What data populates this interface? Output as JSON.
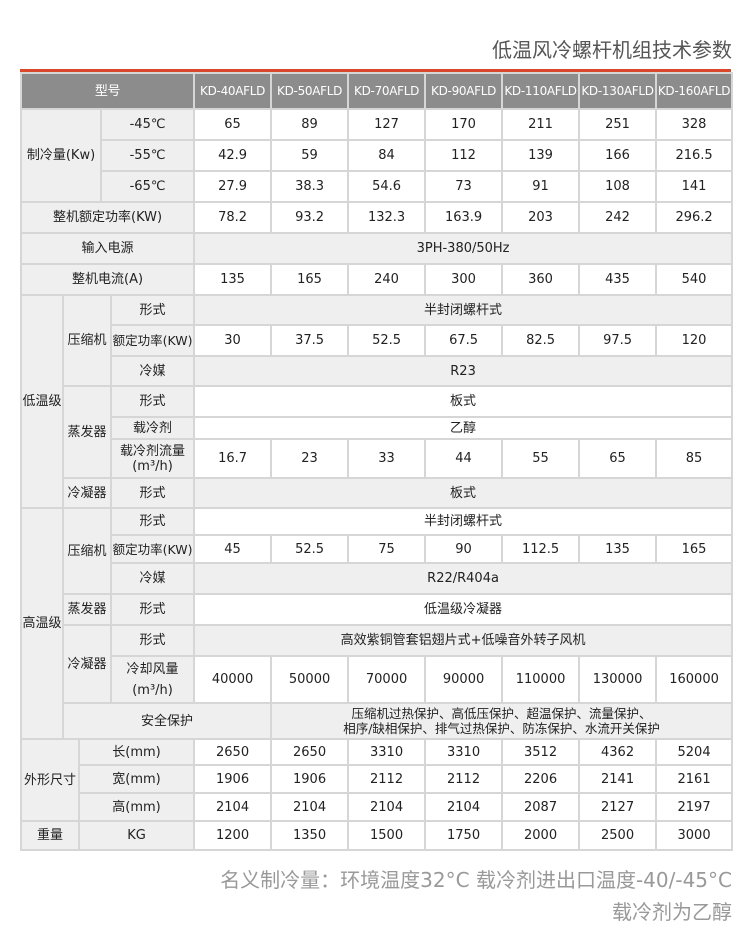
{
  "title": "低温风冷螺杆机组技术参数",
  "colors": {
    "accent": "#d9482b",
    "header_bg": "#8c8c8c",
    "label_bg": "#efefef"
  },
  "header": {
    "label": "型号",
    "models": [
      "KD-40AFLD",
      "KD-50AFLD",
      "KD-70AFLD",
      "KD-90AFLD",
      "KD-110AFLD",
      "KD-130AFLD",
      "KD-160AFLD"
    ]
  },
  "cooling": {
    "label": "制冷量(Kw)",
    "rows": [
      {
        "temp": "-45℃",
        "values": [
          "65",
          "89",
          "127",
          "170",
          "211",
          "251",
          "328"
        ]
      },
      {
        "temp": "-55℃",
        "values": [
          "42.9",
          "59",
          "84",
          "112",
          "139",
          "166",
          "216.5"
        ]
      },
      {
        "temp": "-65℃",
        "values": [
          "27.9",
          "38.3",
          "54.6",
          "73",
          "91",
          "108",
          "141"
        ]
      }
    ]
  },
  "power": {
    "label": "整机额定功率(KW)",
    "values": [
      "78.2",
      "93.2",
      "132.3",
      "163.9",
      "203",
      "242",
      "296.2"
    ]
  },
  "supply": {
    "label": "输入电源",
    "value": "3PH-380/50Hz"
  },
  "current": {
    "label": "整机电流(A)",
    "values": [
      "135",
      "165",
      "240",
      "300",
      "360",
      "435",
      "540"
    ]
  },
  "low": {
    "label": "低温级",
    "compressor": {
      "label": "压缩机",
      "type_label": "形式",
      "type": "半封闭螺杆式",
      "power_label": "额定功率(KW)",
      "power": [
        "30",
        "37.5",
        "52.5",
        "67.5",
        "82.5",
        "97.5",
        "120"
      ],
      "refrigerant_label": "冷媒",
      "refrigerant": "R23"
    },
    "evaporator": {
      "label": "蒸发器",
      "type_label": "形式",
      "type": "板式",
      "coolant_label": "载冷剂",
      "coolant": "乙醇",
      "flow_label": "载冷剂流量",
      "flow_unit": "(m³/h)",
      "flow": [
        "16.7",
        "23",
        "33",
        "44",
        "55",
        "65",
        "85"
      ]
    },
    "condenser": {
      "label": "冷凝器",
      "type_label": "形式",
      "type": "板式"
    }
  },
  "high": {
    "label": "高温级",
    "compressor": {
      "label": "压缩机",
      "type_label": "形式",
      "type": "半封闭螺杆式",
      "power_label": "额定功率(KW)",
      "power": [
        "45",
        "52.5",
        "75",
        "90",
        "112.5",
        "135",
        "165"
      ],
      "refrigerant_label": "冷媒",
      "refrigerant": "R22/R404a"
    },
    "evaporator": {
      "label": "蒸发器",
      "type_label": "形式",
      "type": "低温级冷凝器"
    },
    "condenser": {
      "label": "冷凝器",
      "type_label": "形式",
      "type": "高效紫铜管套铝翅片式+低噪音外转子风机",
      "air_label": "冷却风量",
      "air_unit": "(m³/h)",
      "air": [
        "40000",
        "50000",
        "70000",
        "90000",
        "110000",
        "130000",
        "160000"
      ]
    }
  },
  "safety": {
    "label": "安全保护",
    "line1": "压缩机过热保护、高低压保护、超温保护、流量保护、",
    "line2": "相序/缺相保护、排气过热保护、防冻保护、水流开关保护"
  },
  "dims": {
    "label": "外形尺寸",
    "rows": [
      {
        "label": "长(mm)",
        "values": [
          "2650",
          "2650",
          "3310",
          "3310",
          "3512",
          "4362",
          "5204"
        ]
      },
      {
        "label": "宽(mm)",
        "values": [
          "1906",
          "1906",
          "2112",
          "2112",
          "2206",
          "2141",
          "2161"
        ]
      },
      {
        "label": "高(mm)",
        "values": [
          "2104",
          "2104",
          "2104",
          "2104",
          "2087",
          "2127",
          "2197"
        ]
      }
    ]
  },
  "weight": {
    "label": "重量",
    "unit": "KG",
    "values": [
      "1200",
      "1350",
      "1500",
      "1750",
      "2000",
      "2500",
      "3000"
    ]
  },
  "footnote": {
    "line1": "名义制冷量：环境温度32°C  载冷剂进出口温度-40/-45°C",
    "line2": "载冷剂为乙醇"
  }
}
